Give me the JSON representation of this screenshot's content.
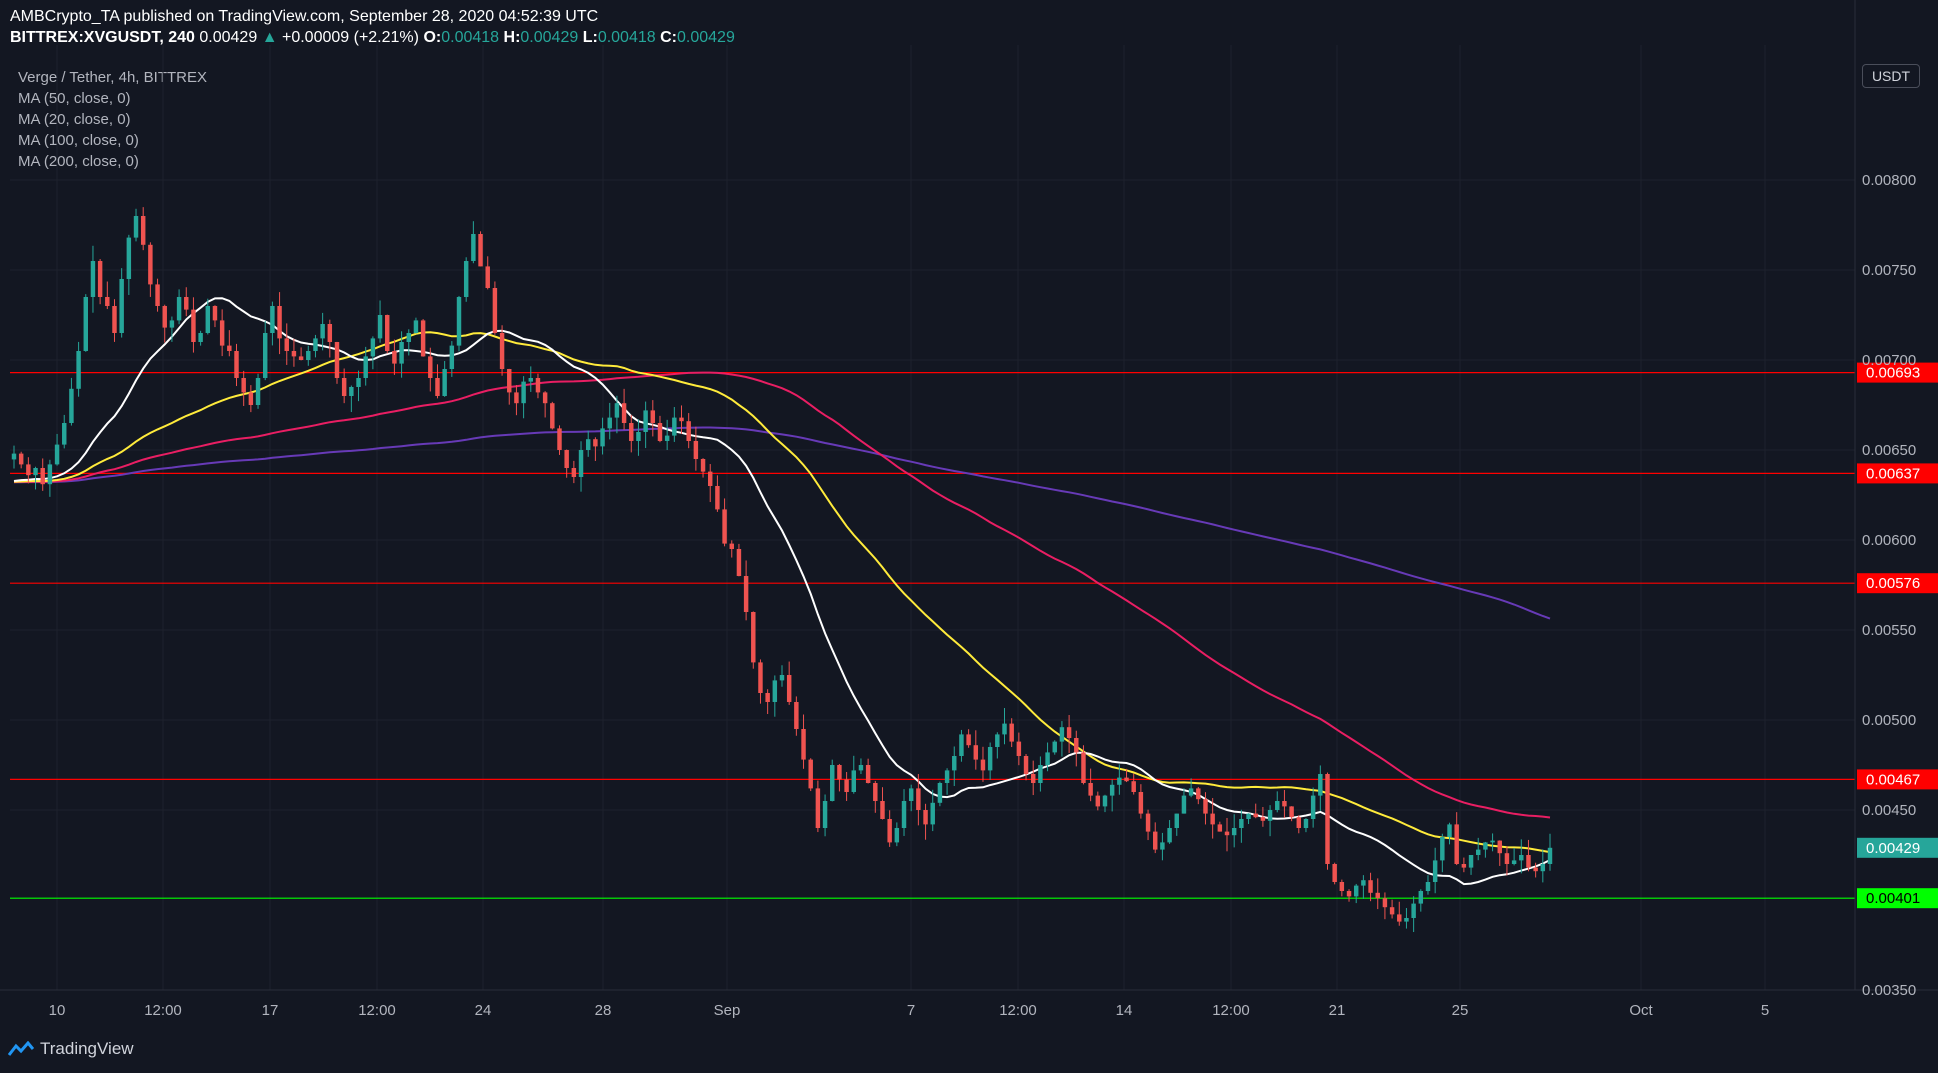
{
  "header": {
    "line1": "AMBCrypto_TA published on TradingView.com, September 28, 2020 04:52:39 UTC",
    "symbol": "BITTREX:XVGUSDT, 240",
    "price": "0.00429",
    "change_arrow": "▲",
    "change": "+0.00009 (+2.21%)",
    "o_label": "O:",
    "o": "0.00418",
    "h_label": "H:",
    "h": "0.00429",
    "l_label": "L:",
    "l": "0.00418",
    "c_label": "C:",
    "c": "0.00429"
  },
  "legend": {
    "title": "Verge / Tether, 4h, BITTREX",
    "ma50": "MA (50, close, 0)",
    "ma20": "MA (20, close, 0)",
    "ma100": "MA (100, close, 0)",
    "ma200": "MA (200, close, 0)"
  },
  "unit_button": "USDT",
  "brand": "TradingView",
  "colors": {
    "background": "#131722",
    "up": "#26a69a",
    "down": "#ef5350",
    "ma20": "#ffffff",
    "ma50": "#ffeb3b",
    "ma100": "#e91e63",
    "ma200": "#673ab7",
    "resistance": "#ff0000",
    "support": "#00ff00"
  },
  "chart_data": {
    "type": "candlestick",
    "x_ticks": [
      "10",
      "12:00",
      "17",
      "12:00",
      "24",
      "28",
      "Sep",
      "7",
      "12:00",
      "14",
      "12:00",
      "21",
      "25",
      "Oct",
      "5"
    ],
    "y_ticks": [
      "0.00800",
      "0.00750",
      "0.00700",
      "0.00650",
      "0.00600",
      "0.00550",
      "0.00500",
      "0.00450",
      "0.00350"
    ],
    "ylim": [
      0.0034,
      0.0085
    ],
    "levels": [
      {
        "value": 0.00693,
        "label": "0.00693",
        "color": "#ff0000"
      },
      {
        "value": 0.00637,
        "label": "0.00637",
        "color": "#ff0000"
      },
      {
        "value": 0.00576,
        "label": "0.00576",
        "color": "#ff0000"
      },
      {
        "value": 0.00467,
        "label": "0.00467",
        "color": "#ff0000"
      },
      {
        "value": 0.00401,
        "label": "0.00401",
        "color": "#00ff00"
      }
    ],
    "last_price": {
      "value": 0.00429,
      "label": "0.00429"
    },
    "close_series": [
      0.00648,
      0.00642,
      0.00636,
      0.0064,
      0.00631,
      0.00642,
      0.00653,
      0.00665,
      0.00684,
      0.00705,
      0.00735,
      0.00755,
      0.00735,
      0.0073,
      0.00715,
      0.00745,
      0.00768,
      0.0078,
      0.00764,
      0.00742,
      0.0073,
      0.00718,
      0.00722,
      0.00735,
      0.00728,
      0.0071,
      0.00715,
      0.0073,
      0.00722,
      0.00708,
      0.00705,
      0.0069,
      0.00682,
      0.00675,
      0.0069,
      0.00715,
      0.0073,
      0.00712,
      0.00705,
      0.00702,
      0.007,
      0.00705,
      0.00712,
      0.0072,
      0.0071,
      0.0069,
      0.0068,
      0.00685,
      0.0069,
      0.00702,
      0.00712,
      0.00725,
      0.00705,
      0.00698,
      0.0071,
      0.00715,
      0.00722,
      0.00702,
      0.0069,
      0.0068,
      0.00695,
      0.00708,
      0.00735,
      0.00755,
      0.0077,
      0.00752,
      0.0074,
      0.00715,
      0.00695,
      0.00682,
      0.00676,
      0.00688,
      0.0069,
      0.00682,
      0.00676,
      0.00662,
      0.0065,
      0.0064,
      0.00635,
      0.0065,
      0.00656,
      0.00652,
      0.00662,
      0.00668,
      0.00676,
      0.00665,
      0.00655,
      0.0066,
      0.00672,
      0.00665,
      0.00655,
      0.00658,
      0.00668,
      0.00666,
      0.00655,
      0.00645,
      0.00638,
      0.0063,
      0.00617,
      0.00598,
      0.00595,
      0.0058,
      0.0056,
      0.00532,
      0.00515,
      0.0051,
      0.00522,
      0.00525,
      0.0051,
      0.00495,
      0.00478,
      0.00462,
      0.0044,
      0.00455,
      0.00475,
      0.00467,
      0.0046,
      0.00472,
      0.00475,
      0.00465,
      0.00455,
      0.00445,
      0.00432,
      0.0044,
      0.00455,
      0.00462,
      0.0045,
      0.00442,
      0.00454,
      0.00465,
      0.00472,
      0.0048,
      0.00492,
      0.00486,
      0.00478,
      0.00472,
      0.00485,
      0.00492,
      0.00498,
      0.00488,
      0.0048,
      0.0047,
      0.00465,
      0.00475,
      0.00482,
      0.00488,
      0.00496,
      0.0049,
      0.00482,
      0.00465,
      0.00458,
      0.00452,
      0.00458,
      0.00464,
      0.00468,
      0.00466,
      0.0046,
      0.00448,
      0.00438,
      0.00428,
      0.00432,
      0.0044,
      0.00448,
      0.00458,
      0.00462,
      0.00456,
      0.00448,
      0.00442,
      0.00438,
      0.00436,
      0.0044,
      0.00445,
      0.00448,
      0.00446,
      0.00444,
      0.0045,
      0.00455,
      0.00452,
      0.00446,
      0.0044,
      0.00445,
      0.00458,
      0.0047,
      0.0042,
      0.0041,
      0.00405,
      0.00402,
      0.00408,
      0.00411,
      0.00404,
      0.00401,
      0.00396,
      0.00392,
      0.00388,
      0.0039,
      0.00398,
      0.00405,
      0.0041,
      0.00422,
      0.00435,
      0.00442,
      0.0042,
      0.00418,
      0.00425,
      0.00428,
      0.00432,
      0.00433,
      0.00426,
      0.0042,
      0.00422,
      0.00425,
      0.00418,
      0.00416,
      0.0042,
      0.00429
    ]
  }
}
